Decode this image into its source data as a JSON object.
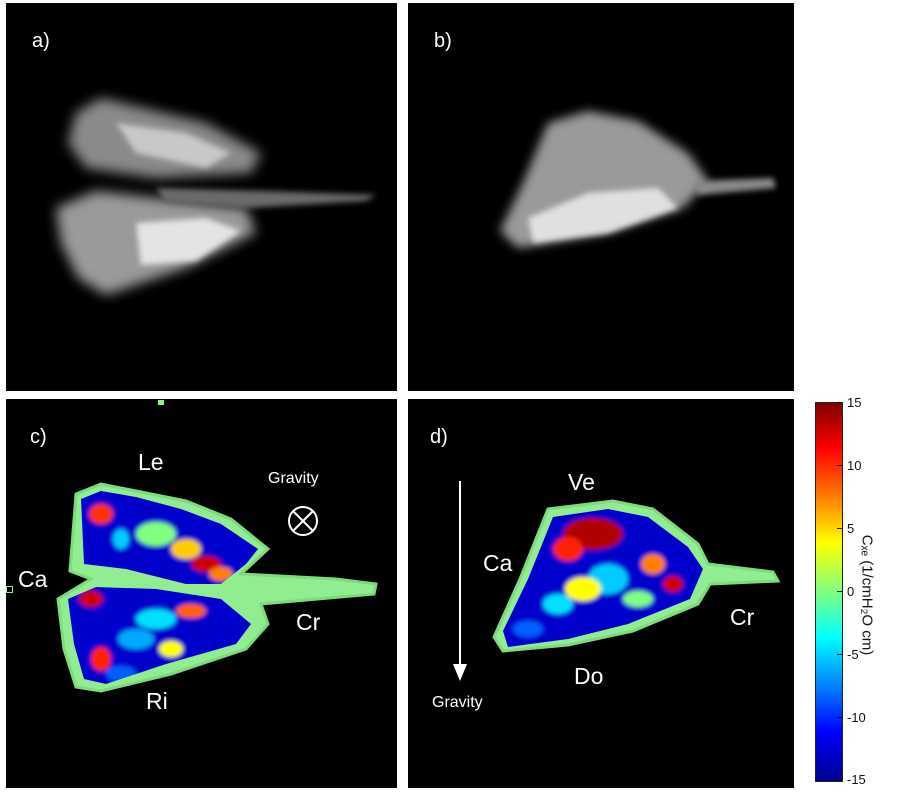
{
  "panels": {
    "a": {
      "label": "a)"
    },
    "b": {
      "label": "b)"
    },
    "c": {
      "label": "c)",
      "left": "Le",
      "right": "Ri",
      "caudal": "Ca",
      "cranial": "Cr",
      "gravity": "Gravity"
    },
    "d": {
      "label": "d)",
      "ventral": "Ve",
      "dorsal": "Do",
      "caudal": "Ca",
      "cranial": "Cr",
      "gravity": "Gravity"
    }
  },
  "colorbar": {
    "label": "Cₓₑ (1/cmH₂O cm)",
    "ticks": [
      "15",
      "10",
      "5",
      "0",
      "-5",
      "-10",
      "-15"
    ],
    "colors": [
      "#800000",
      "#ff0000",
      "#ff8000",
      "#ffff00",
      "#80ff80",
      "#00ffff",
      "#0080ff",
      "#0000ff",
      "#00008f"
    ]
  }
}
